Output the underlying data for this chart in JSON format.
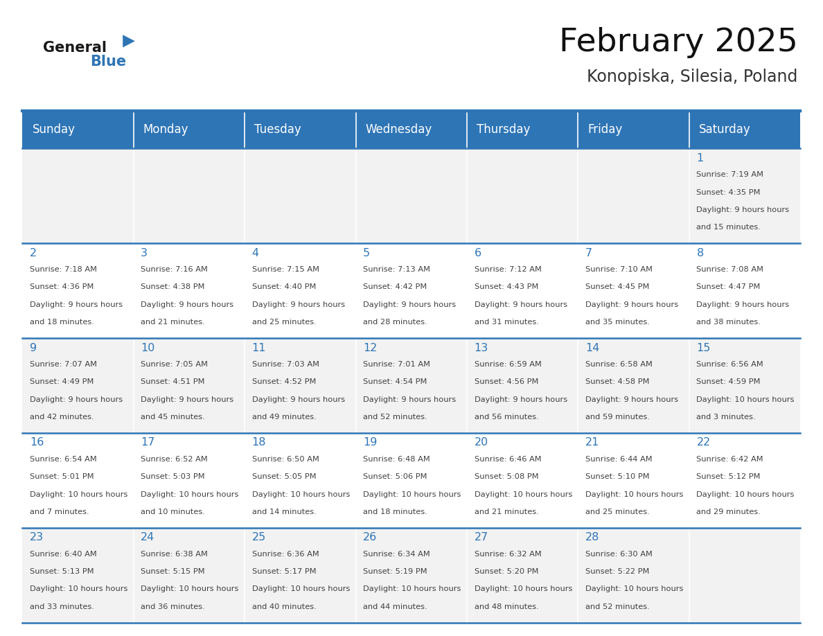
{
  "title": "February 2025",
  "subtitle": "Konopiska, Silesia, Poland",
  "days_of_week": [
    "Sunday",
    "Monday",
    "Tuesday",
    "Wednesday",
    "Thursday",
    "Friday",
    "Saturday"
  ],
  "header_bg": "#2e75b6",
  "header_text": "#ffffff",
  "row_bg_odd": "#f2f2f2",
  "row_bg_even": "#ffffff",
  "border_color": "#2e75b6",
  "day_number_color": "#2e75b6",
  "text_color": "#404040",
  "calendar": [
    [
      null,
      null,
      null,
      null,
      null,
      null,
      {
        "day": 1,
        "sunrise": "7:19 AM",
        "sunset": "4:35 PM",
        "daylight": "9 hours and 15 minutes."
      }
    ],
    [
      {
        "day": 2,
        "sunrise": "7:18 AM",
        "sunset": "4:36 PM",
        "daylight": "9 hours and 18 minutes."
      },
      {
        "day": 3,
        "sunrise": "7:16 AM",
        "sunset": "4:38 PM",
        "daylight": "9 hours and 21 minutes."
      },
      {
        "day": 4,
        "sunrise": "7:15 AM",
        "sunset": "4:40 PM",
        "daylight": "9 hours and 25 minutes."
      },
      {
        "day": 5,
        "sunrise": "7:13 AM",
        "sunset": "4:42 PM",
        "daylight": "9 hours and 28 minutes."
      },
      {
        "day": 6,
        "sunrise": "7:12 AM",
        "sunset": "4:43 PM",
        "daylight": "9 hours and 31 minutes."
      },
      {
        "day": 7,
        "sunrise": "7:10 AM",
        "sunset": "4:45 PM",
        "daylight": "9 hours and 35 minutes."
      },
      {
        "day": 8,
        "sunrise": "7:08 AM",
        "sunset": "4:47 PM",
        "daylight": "9 hours and 38 minutes."
      }
    ],
    [
      {
        "day": 9,
        "sunrise": "7:07 AM",
        "sunset": "4:49 PM",
        "daylight": "9 hours and 42 minutes."
      },
      {
        "day": 10,
        "sunrise": "7:05 AM",
        "sunset": "4:51 PM",
        "daylight": "9 hours and 45 minutes."
      },
      {
        "day": 11,
        "sunrise": "7:03 AM",
        "sunset": "4:52 PM",
        "daylight": "9 hours and 49 minutes."
      },
      {
        "day": 12,
        "sunrise": "7:01 AM",
        "sunset": "4:54 PM",
        "daylight": "9 hours and 52 minutes."
      },
      {
        "day": 13,
        "sunrise": "6:59 AM",
        "sunset": "4:56 PM",
        "daylight": "9 hours and 56 minutes."
      },
      {
        "day": 14,
        "sunrise": "6:58 AM",
        "sunset": "4:58 PM",
        "daylight": "9 hours and 59 minutes."
      },
      {
        "day": 15,
        "sunrise": "6:56 AM",
        "sunset": "4:59 PM",
        "daylight": "10 hours and 3 minutes."
      }
    ],
    [
      {
        "day": 16,
        "sunrise": "6:54 AM",
        "sunset": "5:01 PM",
        "daylight": "10 hours and 7 minutes."
      },
      {
        "day": 17,
        "sunrise": "6:52 AM",
        "sunset": "5:03 PM",
        "daylight": "10 hours and 10 minutes."
      },
      {
        "day": 18,
        "sunrise": "6:50 AM",
        "sunset": "5:05 PM",
        "daylight": "10 hours and 14 minutes."
      },
      {
        "day": 19,
        "sunrise": "6:48 AM",
        "sunset": "5:06 PM",
        "daylight": "10 hours and 18 minutes."
      },
      {
        "day": 20,
        "sunrise": "6:46 AM",
        "sunset": "5:08 PM",
        "daylight": "10 hours and 21 minutes."
      },
      {
        "day": 21,
        "sunrise": "6:44 AM",
        "sunset": "5:10 PM",
        "daylight": "10 hours and 25 minutes."
      },
      {
        "day": 22,
        "sunrise": "6:42 AM",
        "sunset": "5:12 PM",
        "daylight": "10 hours and 29 minutes."
      }
    ],
    [
      {
        "day": 23,
        "sunrise": "6:40 AM",
        "sunset": "5:13 PM",
        "daylight": "10 hours and 33 minutes."
      },
      {
        "day": 24,
        "sunrise": "6:38 AM",
        "sunset": "5:15 PM",
        "daylight": "10 hours and 36 minutes."
      },
      {
        "day": 25,
        "sunrise": "6:36 AM",
        "sunset": "5:17 PM",
        "daylight": "10 hours and 40 minutes."
      },
      {
        "day": 26,
        "sunrise": "6:34 AM",
        "sunset": "5:19 PM",
        "daylight": "10 hours and 44 minutes."
      },
      {
        "day": 27,
        "sunrise": "6:32 AM",
        "sunset": "5:20 PM",
        "daylight": "10 hours and 48 minutes."
      },
      {
        "day": 28,
        "sunrise": "6:30 AM",
        "sunset": "5:22 PM",
        "daylight": "10 hours and 52 minutes."
      },
      null
    ]
  ],
  "logo_general_color": "#1a1a1a",
  "logo_blue_color": "#2e75b6",
  "logo_triangle_color": "#2e75b6"
}
